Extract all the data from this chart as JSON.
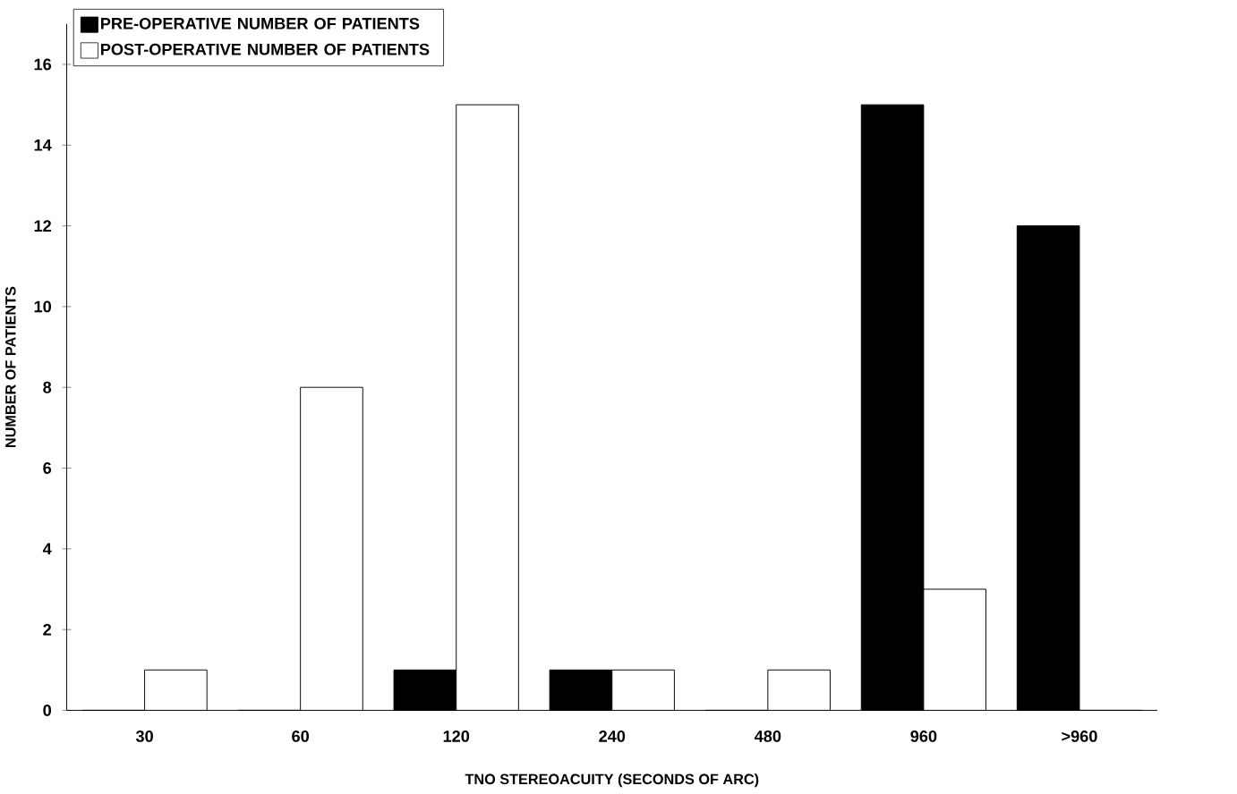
{
  "chart_data": {
    "type": "bar",
    "xlabel": "TNO STEREOACUITY (SECONDS OF ARC)",
    "ylabel": "NUMBER OF PATIENTS",
    "categories": [
      "30",
      "60",
      "120",
      "240",
      "480",
      "960",
      ">960"
    ],
    "series": [
      {
        "name": "PRE-OPERATIVE NUMBER OF PATIENTS",
        "color": "#000000",
        "values": [
          0,
          0,
          1,
          1,
          0,
          15,
          12
        ]
      },
      {
        "name": "POST-OPERATIVE NUMBER OF PATIENTS",
        "color": "#ffffff",
        "values": [
          1,
          8,
          15,
          1,
          1,
          3,
          0
        ]
      }
    ],
    "ylim": [
      0,
      17
    ],
    "yticks": [
      0,
      2,
      4,
      6,
      8,
      10,
      12,
      14,
      16
    ],
    "grid": false,
    "legend": "top left"
  }
}
